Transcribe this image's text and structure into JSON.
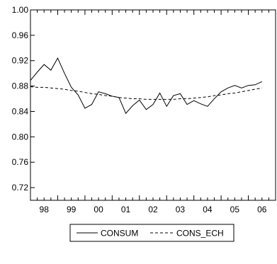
{
  "chart_data": {
    "type": "line",
    "title": "",
    "xlabel": "",
    "ylabel": "",
    "x_start": 1997.5,
    "x_step": 0.25,
    "xlim": [
      1997.5,
      2006.5
    ],
    "ylim": [
      0.7,
      1.0
    ],
    "yticks": [
      0.72,
      0.76,
      0.8,
      0.84,
      0.88,
      0.92,
      0.96,
      1.0
    ],
    "ytick_labels": [
      "0.72",
      "0.76",
      "0.80",
      "0.84",
      "0.88",
      "0.92",
      "0.96",
      "1.00"
    ],
    "xticks": [
      1998,
      1999,
      2000,
      2001,
      2002,
      2003,
      2004,
      2005,
      2006
    ],
    "xtick_labels": [
      "98",
      "99",
      "00",
      "01",
      "02",
      "03",
      "04",
      "05",
      "06"
    ],
    "grid": false,
    "legend_position": "bottom-center",
    "series": [
      {
        "name": "CONSUM",
        "style": "solid",
        "color": "#000000",
        "values": [
          0.889,
          0.902,
          0.914,
          0.905,
          0.924,
          0.9,
          0.878,
          0.866,
          0.845,
          0.851,
          0.871,
          0.868,
          0.864,
          0.862,
          0.837,
          0.849,
          0.858,
          0.843,
          0.851,
          0.869,
          0.848,
          0.865,
          0.868,
          0.851,
          0.857,
          0.852,
          0.848,
          0.86,
          0.871,
          0.877,
          0.881,
          0.877,
          0.881,
          0.882,
          0.887
        ]
      },
      {
        "name": "CONS_ECH",
        "style": "dashed",
        "color": "#000000",
        "values": [
          0.879,
          0.878,
          0.878,
          0.877,
          0.876,
          0.875,
          0.873,
          0.872,
          0.87,
          0.868,
          0.867,
          0.865,
          0.864,
          0.862,
          0.861,
          0.86,
          0.86,
          0.859,
          0.859,
          0.859,
          0.859,
          0.859,
          0.86,
          0.86,
          0.861,
          0.862,
          0.863,
          0.865,
          0.866,
          0.868,
          0.869,
          0.871,
          0.873,
          0.875,
          0.877
        ]
      }
    ]
  }
}
